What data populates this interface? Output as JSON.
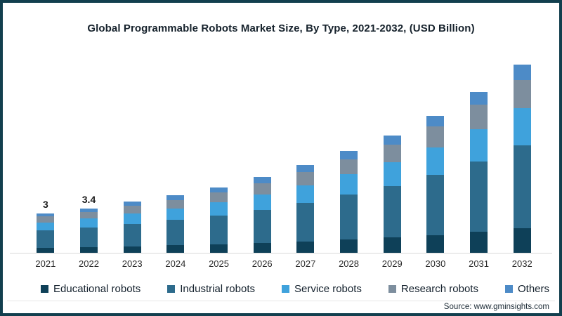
{
  "frame": {
    "border_color": "#123f4e",
    "background_color": "#ffffff"
  },
  "chart_data": {
    "type": "bar",
    "stacked": true,
    "title": "Global Programmable Robots Market Size, By Type, 2021-2032, (USD Billion)",
    "unit": "USD Billion",
    "categories": [
      "2021",
      "2022",
      "2023",
      "2024",
      "2025",
      "2026",
      "2027",
      "2028",
      "2029",
      "2030",
      "2031",
      "2032"
    ],
    "series": [
      {
        "name": "Educational robots",
        "color": "#0e4058",
        "values": [
          0.4,
          0.45,
          0.51,
          0.57,
          0.65,
          0.75,
          0.87,
          1.01,
          1.17,
          1.37,
          1.6,
          1.87
        ]
      },
      {
        "name": "Industrial robots",
        "color": "#2d6b8c",
        "values": [
          1.32,
          1.5,
          1.72,
          1.94,
          2.2,
          2.55,
          2.95,
          3.43,
          3.96,
          4.62,
          5.41,
          6.34
        ]
      },
      {
        "name": "Service robots",
        "color": "#3fa2dc",
        "values": [
          0.6,
          0.68,
          0.78,
          0.88,
          1.0,
          1.16,
          1.34,
          1.56,
          1.8,
          2.1,
          2.46,
          2.88
        ]
      },
      {
        "name": "Research robots",
        "color": "#7d8e9e",
        "values": [
          0.45,
          0.51,
          0.59,
          0.66,
          0.75,
          0.88,
          1.01,
          1.18,
          1.35,
          1.58,
          1.85,
          2.16
        ]
      },
      {
        "name": "Others",
        "color": "#4d8bc7",
        "values": [
          0.23,
          0.26,
          0.3,
          0.35,
          0.4,
          0.46,
          0.53,
          0.62,
          0.72,
          0.83,
          0.98,
          1.15
        ]
      }
    ],
    "totals": [
      3.0,
      3.4,
      3.9,
      4.4,
      5.0,
      5.8,
      6.7,
      7.8,
      9.0,
      10.5,
      12.3,
      14.4
    ],
    "data_labels": {
      "2021": "3",
      "2022": "3.4"
    },
    "ylim": [
      0,
      15
    ],
    "grid": false,
    "legend_position": "bottom",
    "axis_line_color": "#d9d9d9"
  },
  "source": {
    "label": "Source: www.gminsights.com"
  }
}
